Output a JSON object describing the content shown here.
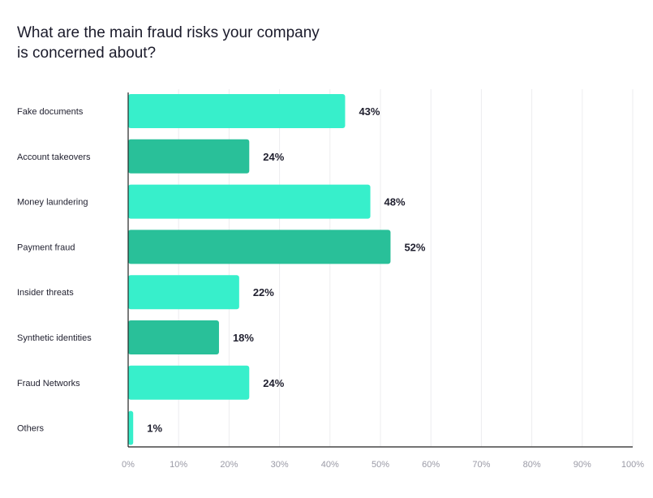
{
  "chart_data": {
    "type": "bar",
    "orientation": "horizontal",
    "title": "What are the main fraud risks your company is concerned about?",
    "title_lines": [
      "What are the main fraud risks your company",
      "is concerned about?"
    ],
    "categories": [
      "Fake documents",
      "Account takeovers",
      "Money laundering",
      "Payment fraud",
      "Insider threats",
      "Synthetic identities",
      "Fraud Networks",
      "Others"
    ],
    "values": [
      43,
      24,
      48,
      52,
      22,
      18,
      24,
      1
    ],
    "value_labels": [
      "43%",
      "24%",
      "48%",
      "52%",
      "22%",
      "18%",
      "24%",
      "1%"
    ],
    "xlim": [
      0,
      100
    ],
    "x_ticks": [
      0,
      10,
      20,
      30,
      40,
      50,
      60,
      70,
      80,
      90,
      100
    ],
    "x_tick_labels": [
      "0%",
      "10%",
      "20%",
      "30%",
      "40%",
      "50%",
      "60%",
      "70%",
      "80%",
      "90%",
      "100%"
    ],
    "xlabel": "",
    "ylabel": "",
    "grid": true,
    "legend": "none",
    "colors": {
      "light": "#37efcb",
      "dark": "#29c099",
      "axis": "#222222",
      "grid": "#ececef",
      "label_text": "#1f1f2e",
      "tick_text": "#9a9aa6"
    },
    "bar_color_pattern": [
      "light",
      "dark",
      "light",
      "dark",
      "light",
      "dark",
      "light",
      "light"
    ]
  }
}
